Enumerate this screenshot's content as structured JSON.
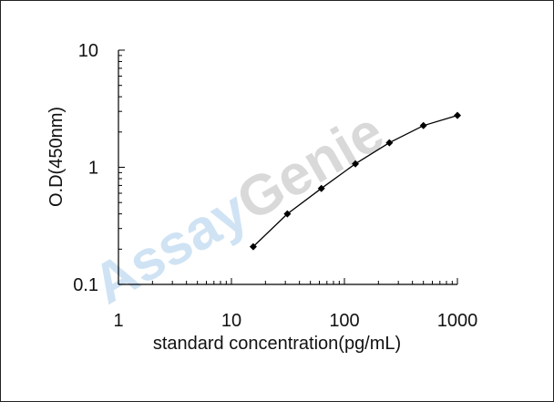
{
  "watermark": {
    "part1": "Assay",
    "part2": "Genie",
    "color1": "#cfe3f4",
    "color2": "#d9d9d9"
  },
  "chart_data": {
    "type": "line",
    "xscale": "log",
    "yscale": "log",
    "xlim": [
      1,
      1000
    ],
    "ylim": [
      0.1,
      10
    ],
    "xlabel": "standard concentration(pg/mL)",
    "ylabel": "O.D(450nm)",
    "xticks": [
      1,
      10,
      100,
      1000
    ],
    "xtick_labels": [
      "1",
      "10",
      "100",
      "1000"
    ],
    "yticks": [
      0.1,
      1,
      10
    ],
    "ytick_labels": [
      "0.1",
      "1",
      "10"
    ],
    "grid": false,
    "series": [
      {
        "x": [
          15.6,
          31.25,
          62.5,
          125,
          250,
          500,
          1000
        ],
        "y": [
          0.21,
          0.4,
          0.66,
          1.07,
          1.62,
          2.27,
          2.77
        ],
        "color": "#000000",
        "marker": "diamond"
      }
    ]
  }
}
